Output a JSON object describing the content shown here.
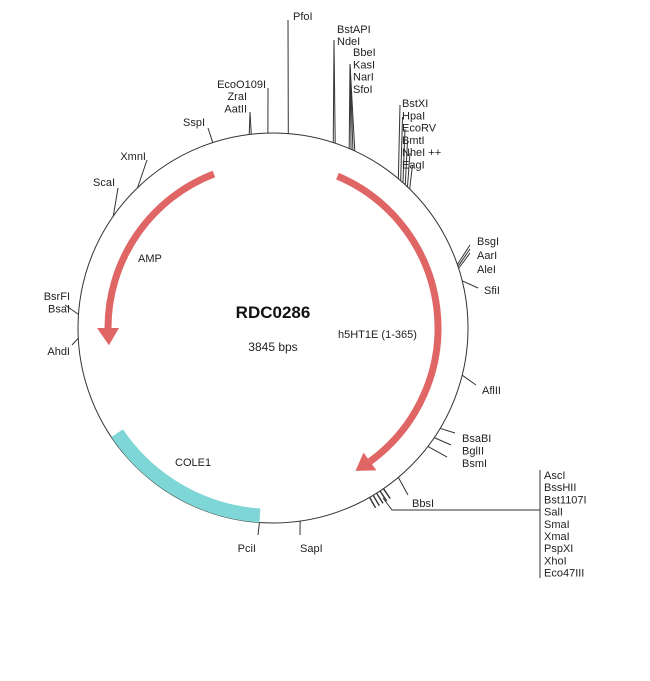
{
  "plasmid": {
    "name": "RDC0286",
    "size_label": "3845 bps"
  },
  "features": [
    {
      "name": "AMP",
      "color": "#e06666",
      "type": "arrow"
    },
    {
      "name": "h5HT1E (1-365)",
      "color": "#e06666",
      "type": "arrow"
    },
    {
      "name": "COLE1",
      "color": "#7fd6d6",
      "type": "region"
    }
  ],
  "enzymes": {
    "pfoi": [
      "PfoI"
    ],
    "eco": [
      "EcoO109I"
    ],
    "zra": [
      "ZraI",
      "AatII"
    ],
    "sspi": [
      "SspI"
    ],
    "bstapi": [
      "BstAPI",
      "NdeI"
    ],
    "bbei": [
      "BbeI",
      "KasI",
      "NarI",
      "SfoI"
    ],
    "bstxi": [
      "BstXI",
      "HpaI",
      "EcoRV",
      "BmtI",
      "NheI ++",
      "EagI"
    ],
    "bsgi": [
      "BsgI",
      "AarI",
      "AleI"
    ],
    "sfii": [
      "SfiI"
    ],
    "aflii": [
      "AflII"
    ],
    "bsabi": [
      "BsaBI",
      "BglII",
      "BsmI"
    ],
    "bbsi": [
      "BbsI"
    ],
    "mcs": [
      "AscI",
      "BssHII",
      "Bst1107I",
      "SalI",
      "SmaI",
      "XmaI",
      "PspXI",
      "XhoI",
      "Eco47III"
    ],
    "sapi": [
      "SapI"
    ],
    "pcii": [
      "PciI"
    ],
    "ahdi": [
      "AhdI"
    ],
    "bsrfi": [
      "BsrFI",
      "BsaI"
    ],
    "scai": [
      "ScaI"
    ],
    "xmni": [
      "XmnI"
    ]
  }
}
